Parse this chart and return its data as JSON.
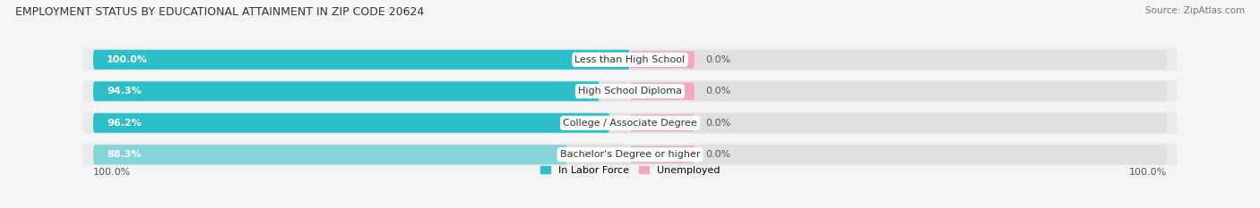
{
  "title": "EMPLOYMENT STATUS BY EDUCATIONAL ATTAINMENT IN ZIP CODE 20624",
  "source": "Source: ZipAtlas.com",
  "categories": [
    "Less than High School",
    "High School Diploma",
    "College / Associate Degree",
    "Bachelor's Degree or higher"
  ],
  "labor_force_pct": [
    100.0,
    94.3,
    96.2,
    88.3
  ],
  "unemployed_pct": [
    0.0,
    0.0,
    0.0,
    0.0
  ],
  "labor_force_colors": [
    "#2cbfc9",
    "#2cbfc9",
    "#2cbfc9",
    "#85d4da"
  ],
  "unemployed_color": "#f4a7bf",
  "bar_bg_color": "#e0e0e0",
  "row_bg_color": "#ebebeb",
  "background_color": "#f5f5f5",
  "bar_height": 0.62,
  "x_left_label": "100.0%",
  "x_right_label": "100.0%",
  "legend_labor_force": "In Labor Force",
  "legend_unemployed": "Unemployed",
  "unemployed_bar_width": 12.0
}
